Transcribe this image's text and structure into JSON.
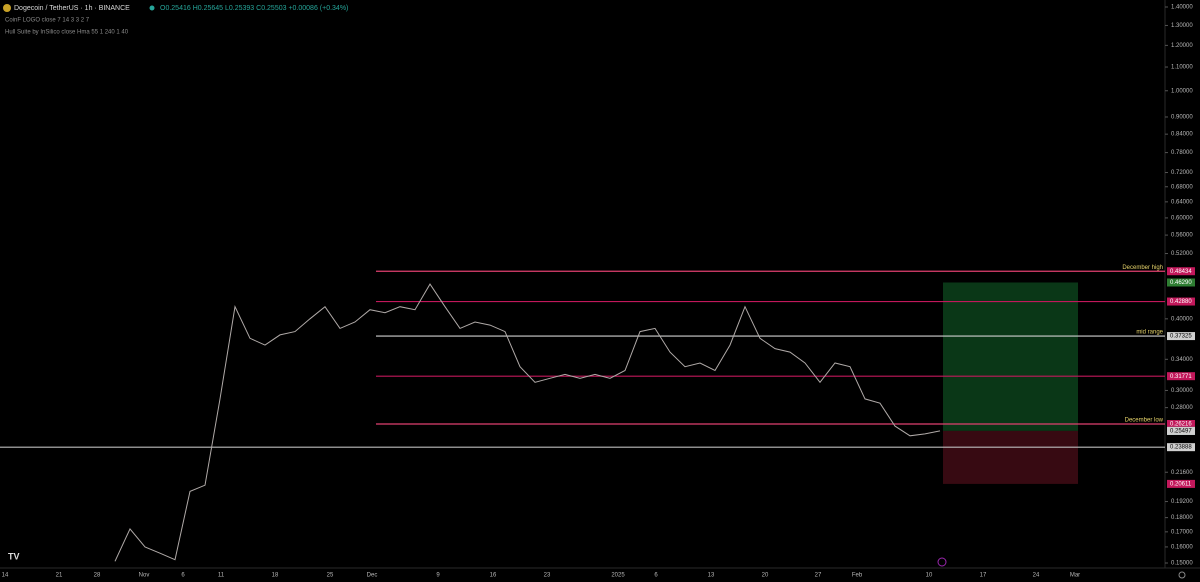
{
  "header": {
    "symbol": "Dogecoin / TetherUS · 1h · BINANCE",
    "ohlc": "O0.25416 H0.25645 L0.25393 C0.25503 +0.00086 (+0.34%)",
    "indicator_1": "CoinF LOGO close 7 14 3 3 2 7",
    "indicator_2": "Hull Suite by InSilico close Hma 55 1 240 1 40"
  },
  "price_axis": {
    "scale": "log",
    "range": [
      0.15,
      1.4
    ],
    "ticks": [
      {
        "value": 1.4,
        "label": "1.40000"
      },
      {
        "value": 1.3,
        "label": "1.30000"
      },
      {
        "value": 1.2,
        "label": "1.20000"
      },
      {
        "value": 1.1,
        "label": "1.10000"
      },
      {
        "value": 1.0,
        "label": "1.00000"
      },
      {
        "value": 0.9,
        "label": "0.90000"
      },
      {
        "value": 0.84,
        "label": "0.84000"
      },
      {
        "value": 0.78,
        "label": "0.78000"
      },
      {
        "value": 0.72,
        "label": "0.72000"
      },
      {
        "value": 0.68,
        "label": "0.68000"
      },
      {
        "value": 0.64,
        "label": "0.64000"
      },
      {
        "value": 0.6,
        "label": "0.60000"
      },
      {
        "value": 0.56,
        "label": "0.56000"
      },
      {
        "value": 0.52,
        "label": "0.52000"
      },
      {
        "value": 0.4,
        "label": "0.40000"
      },
      {
        "value": 0.34,
        "label": "0.34000"
      },
      {
        "value": 0.3,
        "label": "0.30000"
      },
      {
        "value": 0.28,
        "label": "0.28000"
      },
      {
        "value": 0.216,
        "label": "0.21600"
      },
      {
        "value": 0.192,
        "label": "0.19200"
      },
      {
        "value": 0.18,
        "label": "0.18000"
      },
      {
        "value": 0.17,
        "label": "0.17000"
      },
      {
        "value": 0.16,
        "label": "0.16000"
      },
      {
        "value": 0.15,
        "label": "0.15000"
      }
    ],
    "badges": [
      {
        "value": 0.48434,
        "label": "0.48434",
        "color": "#c2185b"
      },
      {
        "value": 0.4629,
        "label": "0.46290",
        "color": "#2e7d32"
      },
      {
        "value": 0.4288,
        "label": "0.42880",
        "color": "#c2185b"
      },
      {
        "value": 0.37325,
        "label": "0.37325",
        "color": "#d0d0d0"
      },
      {
        "value": 0.31771,
        "label": "0.31771",
        "color": "#c2185b"
      },
      {
        "value": 0.26216,
        "label": "0.26216",
        "color": "#c2185b"
      },
      {
        "value": 0.25503,
        "label": "0.25503",
        "color": "#26a69a"
      },
      {
        "value": 0.25497,
        "label": "0.25497",
        "color": "#d0d0d0"
      },
      {
        "value": 0.23888,
        "label": "0.23888",
        "color": "#d0d0d0"
      },
      {
        "value": 0.20611,
        "label": "0.20611",
        "color": "#c2185b"
      }
    ]
  },
  "time_axis": [
    "14",
    "21",
    "28",
    "Nov",
    "6",
    "11",
    "18",
    "25",
    "Dec",
    "9",
    "16",
    "23",
    "2025",
    "6",
    "13",
    "20",
    "27",
    "Feb",
    "10",
    "17",
    "24",
    "Mar"
  ],
  "levels": [
    {
      "value": 0.48434,
      "color": "#e0406f",
      "label": "December high"
    },
    {
      "value": 0.4288,
      "color": "#c2185b"
    },
    {
      "value": 0.37325,
      "color": "#cfcfcf",
      "label": "mid range"
    },
    {
      "value": 0.31771,
      "color": "#c2185b"
    },
    {
      "value": 0.26216,
      "color": "#e0406f",
      "label": "December low"
    },
    {
      "value": 0.23888,
      "color": "#bdbdbd"
    }
  ],
  "position": {
    "target": 0.4629,
    "entry": 0.255,
    "stop": 0.20611
  },
  "price_path": {
    "color": "#b0aaa8",
    "values": [
      0.151,
      0.172,
      0.16,
      0.156,
      0.152,
      0.2,
      0.205,
      0.29,
      0.42,
      0.37,
      0.36,
      0.375,
      0.38,
      0.4,
      0.42,
      0.385,
      0.395,
      0.415,
      0.41,
      0.42,
      0.415,
      0.46,
      0.42,
      0.385,
      0.395,
      0.39,
      0.38,
      0.33,
      0.31,
      0.315,
      0.32,
      0.315,
      0.32,
      0.315,
      0.325,
      0.38,
      0.385,
      0.35,
      0.33,
      0.335,
      0.325,
      0.36,
      0.42,
      0.37,
      0.355,
      0.35,
      0.335,
      0.31,
      0.335,
      0.33,
      0.29,
      0.285,
      0.26,
      0.25,
      0.252,
      0.255
    ]
  }
}
